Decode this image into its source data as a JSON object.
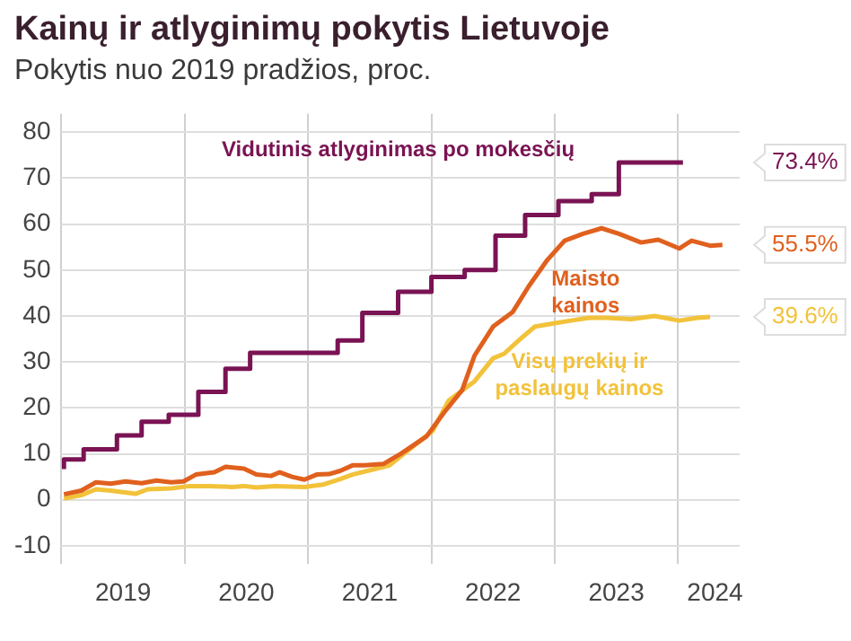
{
  "chart_data": {
    "type": "line",
    "title": "Kainų ir atlyginimų pokytis Lietuvoje",
    "subtitle": "Pokytis nuo 2019 pradžios, proc.",
    "xlim": [
      2019,
      2024.5
    ],
    "xticks": [
      {
        "value": 2019,
        "label": null
      },
      {
        "value": 2019.5,
        "label": "2019"
      },
      {
        "value": 2020,
        "label": null
      },
      {
        "value": 2020.5,
        "label": "2020"
      },
      {
        "value": 2021,
        "label": null
      },
      {
        "value": 2021.5,
        "label": "2021"
      },
      {
        "value": 2022,
        "label": null
      },
      {
        "value": 2022.5,
        "label": "2022"
      },
      {
        "value": 2023,
        "label": null
      },
      {
        "value": 2023.5,
        "label": "2023"
      },
      {
        "value": 2024,
        "label": null
      },
      {
        "value": 2024.3,
        "label": "2024"
      }
    ],
    "ylim": [
      -14,
      84
    ],
    "yticks": [
      -10,
      0,
      10,
      20,
      30,
      40,
      50,
      60,
      70,
      80
    ],
    "grid": true,
    "legend": false,
    "series": [
      {
        "name": "Vidutinis atlyginimas po mokesčių",
        "type": "step",
        "color": "#7a1353",
        "x": [
          2019.02,
          2019.18,
          2019.45,
          2019.65,
          2019.87,
          2020.11,
          2020.33,
          2020.53,
          2021.24,
          2021.44,
          2021.73,
          2022.0,
          2022.27,
          2022.52,
          2022.76,
          2023.03,
          2023.3,
          2023.52,
          2023.77,
          2024.04
        ],
        "values": [
          6.7,
          8.8,
          11,
          14,
          17,
          18.5,
          23.5,
          28.5,
          32,
          34.7,
          40.7,
          45.3,
          48.5,
          50,
          57.5,
          62,
          65,
          66.5,
          73.4,
          73.4
        ]
      },
      {
        "name": "Maisto kainos",
        "color": "#e0601e",
        "x": [
          2019.02,
          2019.16,
          2019.28,
          2019.4,
          2019.52,
          2019.65,
          2019.77,
          2019.89,
          2019.99,
          2020.09,
          2020.24,
          2020.33,
          2020.48,
          2020.58,
          2020.7,
          2020.77,
          2020.87,
          2020.97,
          2021.07,
          2021.17,
          2021.26,
          2021.36,
          2021.46,
          2021.61,
          2021.75,
          2021.96,
          2022.1,
          2022.25,
          2022.35,
          2022.5,
          2022.66,
          2022.79,
          2022.94,
          2023.08,
          2023.23,
          2023.38,
          2023.52,
          2023.7,
          2023.84,
          2024.01,
          2024.11,
          2024.26,
          2024.36
        ],
        "values": [
          1.2,
          2,
          3.8,
          3.5,
          4,
          3.6,
          4.2,
          3.8,
          4,
          5.5,
          6,
          7.2,
          6.8,
          5.5,
          5.2,
          6,
          5,
          4.4,
          5.5,
          5.6,
          6.3,
          7.5,
          7.5,
          7.8,
          10,
          13.8,
          18.9,
          23.9,
          31.4,
          37.7,
          40.9,
          46.5,
          52.2,
          56.4,
          57.9,
          59.1,
          57.9,
          56,
          56.6,
          54.7,
          56.4,
          55.3,
          55.5
        ]
      },
      {
        "name": "Visų prekių ir paslaugų kainos",
        "color": "#f2c23a",
        "x": [
          2019.02,
          2019.16,
          2019.28,
          2019.4,
          2019.6,
          2019.7,
          2019.89,
          2020.04,
          2020.19,
          2020.38,
          2020.48,
          2020.58,
          2020.73,
          2020.97,
          2021.12,
          2021.26,
          2021.36,
          2021.51,
          2021.66,
          2021.8,
          2022.01,
          2022.14,
          2022.35,
          2022.5,
          2022.59,
          2022.72,
          2022.84,
          2022.99,
          2023.13,
          2023.28,
          2023.42,
          2023.62,
          2023.81,
          2024.01,
          2024.16,
          2024.26
        ],
        "values": [
          0.3,
          1,
          2.3,
          2,
          1.3,
          2.3,
          2.5,
          3,
          3,
          2.8,
          3,
          2.7,
          3,
          2.8,
          3.3,
          4.5,
          5.5,
          6.5,
          7.5,
          10.5,
          15,
          21.6,
          25.8,
          30.8,
          31.8,
          35,
          37.7,
          38.4,
          39,
          39.6,
          39.6,
          39.3,
          40,
          39,
          39.6,
          39.8
        ]
      }
    ],
    "annotations": [
      "73.4%",
      "55.5%",
      "39.6%"
    ]
  }
}
